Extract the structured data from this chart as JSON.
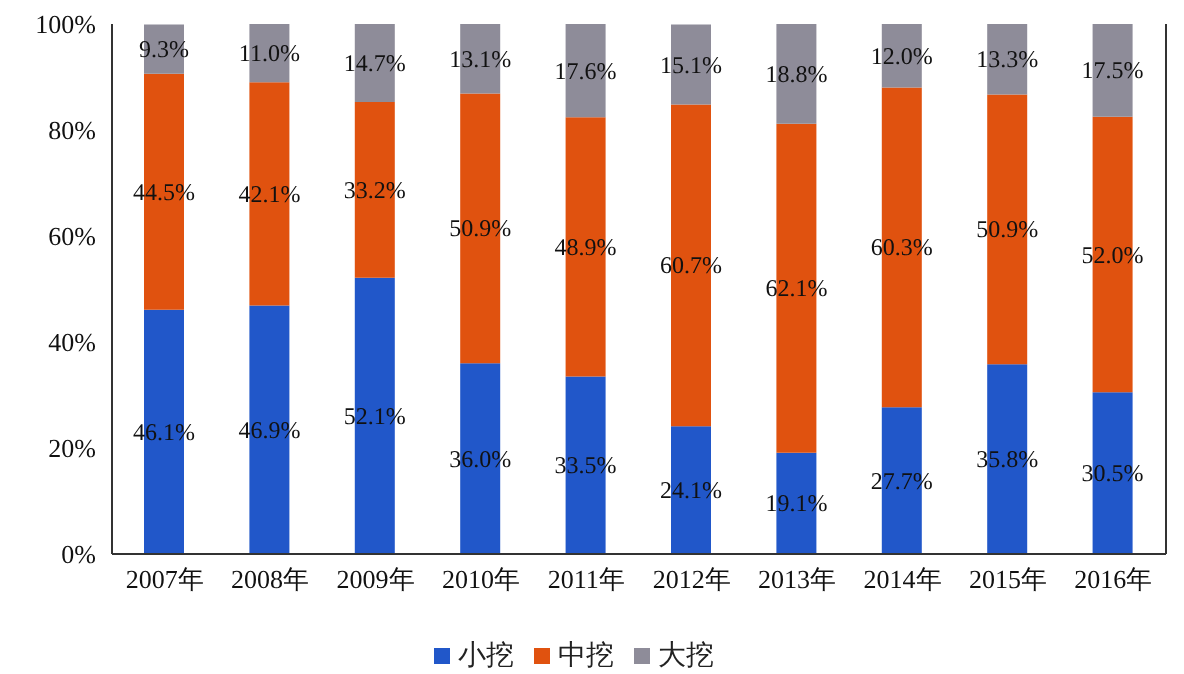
{
  "chart_data": {
    "type": "bar",
    "stacked": true,
    "categories": [
      "2007年",
      "2008年",
      "2009年",
      "2010年",
      "2011年",
      "2012年",
      "2013年",
      "2014年",
      "2015年",
      "2016年"
    ],
    "series": [
      {
        "name": "小挖",
        "color": "#2157c9",
        "values": [
          46.1,
          46.9,
          52.1,
          36.0,
          33.5,
          24.1,
          19.1,
          27.7,
          35.8,
          30.5
        ],
        "value_labels": [
          "46.1%",
          "46.9%",
          "52.1%",
          "36.0%",
          "33.5%",
          "24.1%",
          "19.1%",
          "27.7%",
          "35.8%",
          "30.5%"
        ]
      },
      {
        "name": "中挖",
        "color": "#e0520f",
        "values": [
          44.5,
          42.1,
          33.2,
          50.9,
          48.9,
          60.7,
          62.1,
          60.3,
          50.9,
          52.0
        ],
        "value_labels": [
          "44.5%",
          "42.1%",
          "33.2%",
          "50.9%",
          "48.9%",
          "60.7%",
          "62.1%",
          "60.3%",
          "50.9%",
          "52.0%"
        ]
      },
      {
        "name": "大挖",
        "color": "#8e8c99",
        "values": [
          9.3,
          11.0,
          14.7,
          13.1,
          17.6,
          15.1,
          18.8,
          12.0,
          13.3,
          17.5
        ],
        "value_labels": [
          "9.3%",
          "11.0%",
          "14.7%",
          "13.1%",
          "17.6%",
          "15.1%",
          "18.8%",
          "12.0%",
          "13.3%",
          "17.5%"
        ]
      }
    ],
    "ylim": [
      0,
      100
    ],
    "yticks": [
      {
        "value": 0,
        "label": "0%"
      },
      {
        "value": 20,
        "label": "20%"
      },
      {
        "value": 40,
        "label": "40%"
      },
      {
        "value": 60,
        "label": "60%"
      },
      {
        "value": 80,
        "label": "80%"
      },
      {
        "value": 100,
        "label": "100%"
      }
    ],
    "grid": false,
    "legend": "bottom"
  }
}
